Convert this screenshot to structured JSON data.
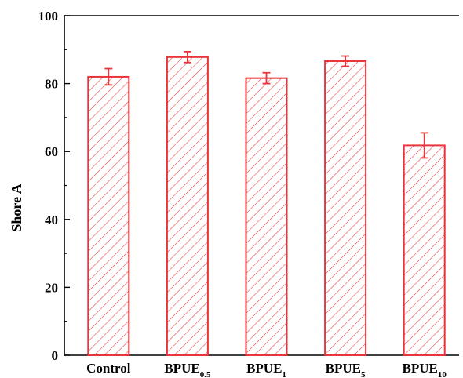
{
  "chart_data": {
    "type": "bar",
    "title": "",
    "xlabel": "",
    "ylabel": "Shore A",
    "ylim": [
      0,
      100
    ],
    "yticks": [
      "0",
      "20",
      "40",
      "60",
      "80",
      "100"
    ],
    "categories": [
      {
        "base": "Control",
        "sub": ""
      },
      {
        "base": "BPUE",
        "sub": "0.5"
      },
      {
        "base": "BPUE",
        "sub": "1"
      },
      {
        "base": "BPUE",
        "sub": "5"
      },
      {
        "base": "BPUE",
        "sub": "10"
      }
    ],
    "series": [
      {
        "values": [
          82.0,
          87.8,
          81.6,
          86.6,
          61.8
        ],
        "errors": [
          2.4,
          1.6,
          1.6,
          1.5,
          3.7
        ]
      }
    ],
    "bar_color": "#e8343a",
    "bar_pattern": "diagonal-hatch",
    "grid": false,
    "legend": "none"
  }
}
